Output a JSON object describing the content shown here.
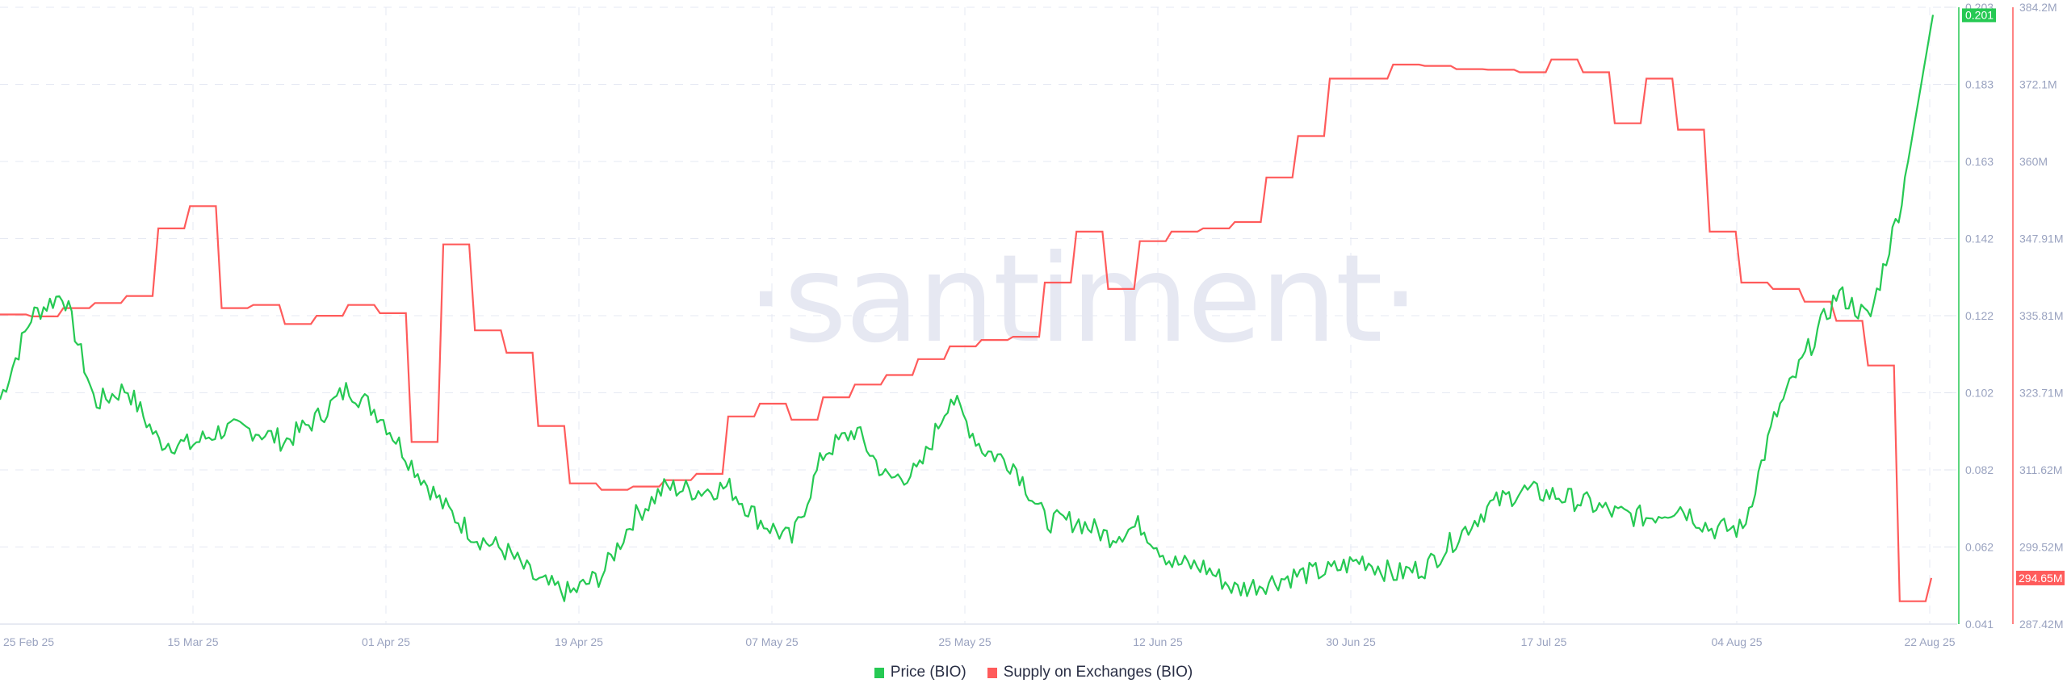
{
  "chart_data": {
    "type": "line",
    "title": "",
    "watermark": "·santiment·",
    "x_tick_labels": [
      "25 Feb 25",
      "15 Mar 25",
      "01 Apr 25",
      "19 Apr 25",
      "07 May 25",
      "25 May 25",
      "12 Jun 25",
      "30 Jun 25",
      "17 Jul 25",
      "04 Aug 25",
      "22 Aug 25"
    ],
    "grid": true,
    "legend_position": "bottom",
    "y_axes": {
      "price": {
        "label": "Price (BIO)",
        "ticks": [
          "0.203",
          "0.183",
          "0.163",
          "0.142",
          "0.122",
          "0.102",
          "0.082",
          "0.062",
          "0.041"
        ],
        "range": [
          0.041,
          0.203
        ],
        "current_value_badge": "0.201",
        "color": "#26c953"
      },
      "supply": {
        "label": "Supply on Exchanges (BIO)",
        "ticks": [
          "384.2M",
          "372.1M",
          "360M",
          "347.91M",
          "335.81M",
          "323.71M",
          "311.62M",
          "299.52M",
          "287.42M"
        ],
        "range": [
          287.42,
          384.2
        ],
        "unit": "M",
        "current_value_badge": "294.65M",
        "color": "#ff5b5b"
      }
    },
    "series": [
      {
        "name": "Price (BIO)",
        "color": "#26c953",
        "axis": "price",
        "x": [
          "25 Feb 25",
          "28 Feb 25",
          "03 Mar 25",
          "06 Mar 25",
          "09 Mar 25",
          "12 Mar 25",
          "15 Mar 25",
          "18 Mar 25",
          "21 Mar 25",
          "24 Mar 25",
          "27 Mar 25",
          "30 Mar 25",
          "01 Apr 25",
          "04 Apr 25",
          "07 Apr 25",
          "10 Apr 25",
          "13 Apr 25",
          "16 Apr 25",
          "19 Apr 25",
          "22 Apr 25",
          "25 Apr 25",
          "28 Apr 25",
          "01 May 25",
          "04 May 25",
          "07 May 25",
          "10 May 25",
          "13 May 25",
          "16 May 25",
          "19 May 25",
          "22 May 25",
          "25 May 25",
          "28 May 25",
          "31 May 25",
          "03 Jun 25",
          "06 Jun 25",
          "09 Jun 25",
          "12 Jun 25",
          "15 Jun 25",
          "18 Jun 25",
          "21 Jun 25",
          "24 Jun 25",
          "27 Jun 25",
          "30 Jun 25",
          "03 Jul 25",
          "06 Jul 25",
          "09 Jul 25",
          "12 Jul 25",
          "15 Jul 25",
          "17 Jul 25",
          "20 Jul 25",
          "23 Jul 25",
          "26 Jul 25",
          "29 Jul 25",
          "01 Aug 25",
          "04 Aug 25",
          "07 Aug 25",
          "10 Aug 25",
          "13 Aug 25",
          "16 Aug 25",
          "19 Aug 25",
          "21 Aug 25",
          "22 Aug 25"
        ],
        "values": [
          0.1,
          0.122,
          0.128,
          0.099,
          0.103,
          0.089,
          0.088,
          0.092,
          0.092,
          0.089,
          0.095,
          0.103,
          0.096,
          0.083,
          0.072,
          0.064,
          0.06,
          0.052,
          0.049,
          0.054,
          0.069,
          0.077,
          0.076,
          0.077,
          0.068,
          0.063,
          0.086,
          0.092,
          0.079,
          0.081,
          0.101,
          0.087,
          0.083,
          0.068,
          0.068,
          0.064,
          0.067,
          0.057,
          0.056,
          0.05,
          0.052,
          0.054,
          0.055,
          0.058,
          0.054,
          0.056,
          0.064,
          0.072,
          0.076,
          0.075,
          0.073,
          0.07,
          0.069,
          0.072,
          0.066,
          0.066,
          0.095,
          0.112,
          0.128,
          0.121,
          0.152,
          0.201
        ]
      },
      {
        "name": "Supply on Exchanges (BIO)",
        "color": "#ff5b5b",
        "axis": "supply",
        "x": [
          "25 Feb 25",
          "28 Feb 25",
          "03 Mar 25",
          "06 Mar 25",
          "09 Mar 25",
          "12 Mar 25",
          "15 Mar 25",
          "18 Mar 25",
          "21 Mar 25",
          "24 Mar 25",
          "27 Mar 25",
          "30 Mar 25",
          "01 Apr 25",
          "04 Apr 25",
          "07 Apr 25",
          "10 Apr 25",
          "13 Apr 25",
          "16 Apr 25",
          "19 Apr 25",
          "22 Apr 25",
          "25 Apr 25",
          "28 Apr 25",
          "01 May 25",
          "04 May 25",
          "07 May 25",
          "10 May 25",
          "13 May 25",
          "16 May 25",
          "19 May 25",
          "22 May 25",
          "25 May 25",
          "28 May 25",
          "31 May 25",
          "03 Jun 25",
          "06 Jun 25",
          "09 Jun 25",
          "12 Jun 25",
          "15 Jun 25",
          "18 Jun 25",
          "21 Jun 25",
          "24 Jun 25",
          "27 Jun 25",
          "30 Jun 25",
          "03 Jul 25",
          "06 Jul 25",
          "09 Jul 25",
          "12 Jul 25",
          "15 Jul 25",
          "17 Jul 25",
          "20 Jul 25",
          "23 Jul 25",
          "26 Jul 25",
          "29 Jul 25",
          "01 Aug 25",
          "04 Aug 25",
          "07 Aug 25",
          "10 Aug 25",
          "13 Aug 25",
          "16 Aug 25",
          "19 Aug 25",
          "20 Aug 25",
          "22 Aug 25"
        ],
        "values": [
          336.0,
          335.7,
          337.0,
          337.8,
          338.9,
          349.5,
          353.0,
          337.0,
          337.5,
          334.5,
          335.8,
          337.5,
          336.2,
          316.0,
          347.0,
          333.5,
          330.0,
          318.5,
          309.5,
          308.5,
          309.0,
          310.0,
          311.0,
          320.0,
          322.0,
          319.5,
          323.0,
          325.0,
          326.5,
          329.0,
          331.0,
          332.0,
          332.5,
          341.0,
          349.0,
          340.0,
          347.5,
          349.0,
          349.5,
          350.5,
          357.5,
          364.0,
          373.0,
          373.0,
          375.2,
          375.0,
          374.5,
          374.4,
          374.0,
          376.0,
          374.0,
          366.0,
          373.0,
          365.0,
          349.0,
          341.0,
          340.0,
          338.0,
          335.0,
          328.0,
          291.0,
          294.65
        ]
      }
    ]
  },
  "legend": {
    "items": [
      {
        "label": "Price (BIO)",
        "color": "#26c953"
      },
      {
        "label": "Supply on Exchanges (BIO)",
        "color": "#ff5b5b"
      }
    ]
  }
}
